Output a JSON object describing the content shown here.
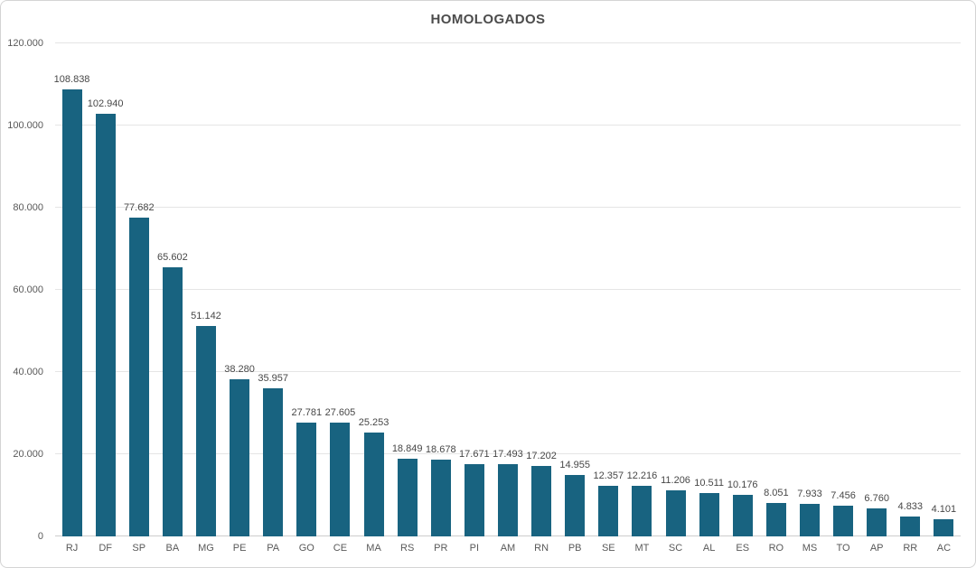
{
  "chart": {
    "title": "HOMOLOGADOS"
  },
  "colors": {
    "bar": "#186380",
    "gridline": "#e5e5e5",
    "axis_line": "#cdcdcd",
    "label_text": "#595959",
    "value_text": "#474747",
    "title_text": "#4c4c4c",
    "card_border": "#d4d4d4",
    "background": "#ffffff"
  },
  "chart_data": {
    "type": "bar",
    "title": "HOMOLOGADOS",
    "xlabel": "",
    "ylabel": "",
    "legend": "none",
    "grid": "horizontal",
    "ylim": [
      0,
      120000
    ],
    "y_ticks": [
      "0",
      "20.000",
      "40.000",
      "60.000",
      "80.000",
      "100.000",
      "120.000"
    ],
    "categories": [
      "RJ",
      "DF",
      "SP",
      "BA",
      "MG",
      "PE",
      "PA",
      "GO",
      "CE",
      "MA",
      "RS",
      "PR",
      "PI",
      "AM",
      "RN",
      "PB",
      "SE",
      "MT",
      "SC",
      "AL",
      "ES",
      "RO",
      "MS",
      "TO",
      "AP",
      "RR",
      "AC"
    ],
    "values": [
      108838,
      102940,
      77682,
      65602,
      51142,
      38280,
      35957,
      27781,
      27605,
      25253,
      18849,
      18678,
      17671,
      17493,
      17202,
      14955,
      12357,
      12216,
      11206,
      10511,
      10176,
      8051,
      7933,
      7456,
      6760,
      4833,
      4101
    ],
    "value_labels": [
      "108.838",
      "102.940",
      "77.682",
      "65.602",
      "51.142",
      "38.280",
      "35.957",
      "27.781",
      "27.605",
      "25.253",
      "18.849",
      "18.678",
      "17.671",
      "17.493",
      "17.202",
      "14.955",
      "12.357",
      "12.216",
      "11.206",
      "10.511",
      "10.176",
      "8.051",
      "7.933",
      "7.456",
      "6.760",
      "4.833",
      "4.101"
    ]
  }
}
